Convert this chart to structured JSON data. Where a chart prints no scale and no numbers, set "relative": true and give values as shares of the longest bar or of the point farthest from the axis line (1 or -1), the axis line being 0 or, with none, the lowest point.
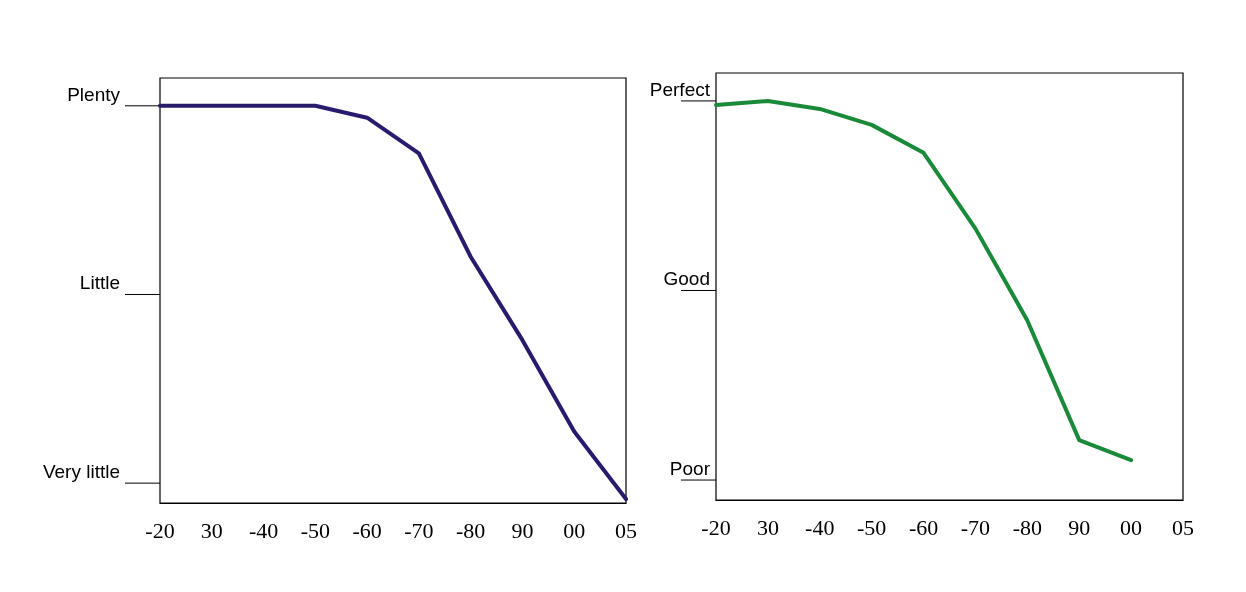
{
  "chart_data": [
    {
      "type": "line",
      "relative": true,
      "marker": "none",
      "line_style": "solid",
      "categories": [
        "-20",
        "30",
        "-40",
        "-50",
        "-60",
        "-70",
        "-80",
        "90",
        "00",
        "05"
      ],
      "annotations": [
        "Plenty",
        "Little",
        "Very little"
      ],
      "series": [
        {
          "color": "#2a1a6e",
          "values": [
            1.0,
            1.0,
            1.0,
            1.0,
            0.97,
            0.88,
            0.62,
            0.41,
            0.18,
            0.01
          ]
        }
      ]
    },
    {
      "type": "line",
      "relative": true,
      "marker": "none",
      "line_style": "solid",
      "categories": [
        "-20",
        "30",
        "-40",
        "-50",
        "-60",
        "-70",
        "-80",
        "90",
        "00",
        "05"
      ],
      "annotations": [
        "Perfect",
        "Good",
        "Poor"
      ],
      "series": [
        {
          "color": "#1a8a3a",
          "values": [
            0.99,
            1.0,
            0.98,
            0.94,
            0.87,
            0.68,
            0.45,
            0.15,
            0.1,
            null
          ]
        }
      ]
    }
  ]
}
